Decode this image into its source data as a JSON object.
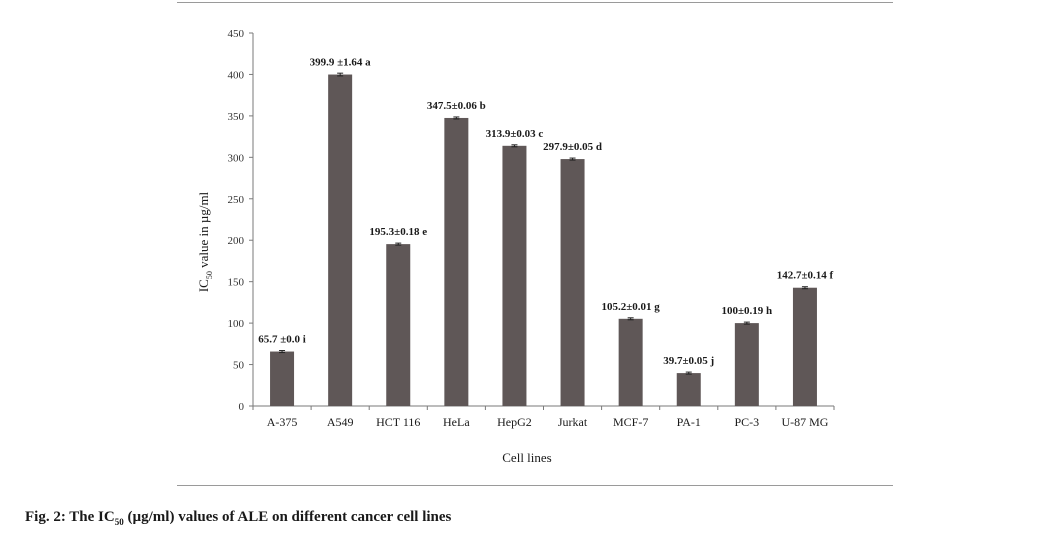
{
  "chart_data": {
    "type": "bar",
    "categories": [
      "A-375",
      "A549",
      "HCT 116",
      "HeLa",
      "HepG2",
      "Jurkat",
      "MCF-7",
      "PA-1",
      "PC-3",
      "U-87 MG"
    ],
    "values": [
      65.7,
      399.9,
      195.3,
      347.5,
      313.9,
      297.9,
      105.2,
      39.7,
      100,
      142.7
    ],
    "errors": [
      0.0,
      1.64,
      0.18,
      0.06,
      0.03,
      0.05,
      0.01,
      0.05,
      0.19,
      0.14
    ],
    "data_labels": [
      "65.7 ±0.0 i",
      "399.9 ±1.64 a",
      "195.3±0.18 e",
      "347.5±0.06 b",
      "313.9±0.03 c",
      "297.9±0.05 d",
      "105.2±0.01 g",
      "39.7±0.05 j",
      "100±0.19 h",
      "142.7±0.14 f"
    ],
    "xlabel": "Cell lines",
    "ylabel": {
      "prefix": "IC",
      "subscript": "50",
      "suffix": " value in µg/ml"
    },
    "ylim": [
      0,
      450
    ],
    "yticks": [
      0,
      50,
      100,
      150,
      200,
      250,
      300,
      350,
      400,
      450
    ],
    "grid": false,
    "legend": "none",
    "bar_color": "#5f5757"
  },
  "caption": {
    "prefix": "Fig. 2: The IC",
    "subscript": "50",
    "suffix": " (µg/ml) values of ALE on different cancer cell lines"
  }
}
